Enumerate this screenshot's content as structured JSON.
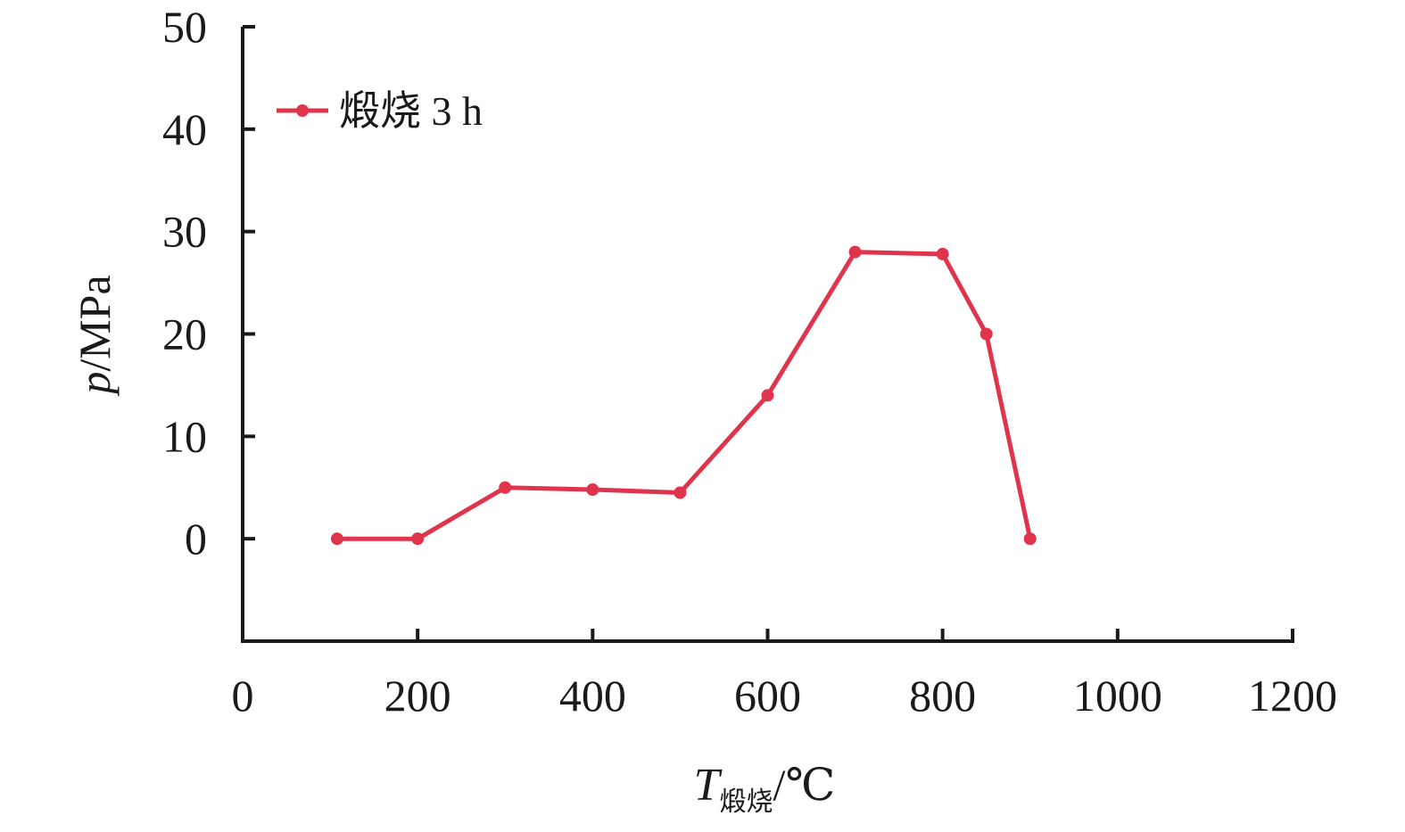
{
  "chart_data": {
    "type": "line",
    "xlabel": {
      "main": "T",
      "sub": "煅烧",
      "unit": "/℃"
    },
    "ylabel": {
      "main": "p",
      "unit": "/MPa"
    },
    "xlim": [
      0,
      1200
    ],
    "ylim": [
      -10,
      50
    ],
    "xticks": [
      0,
      200,
      400,
      600,
      800,
      1000,
      1200
    ],
    "xtick_labels": [
      "0",
      "200",
      "400",
      "600",
      "800",
      "1000",
      "1200"
    ],
    "yticks": [
      0,
      10,
      20,
      30,
      40,
      50
    ],
    "ytick_labels": [
      "0",
      "10",
      "20",
      "30",
      "40",
      "50"
    ],
    "grid": false,
    "legend_position": "top-left",
    "series": [
      {
        "name": "煅烧 3 h",
        "color": "#e0344c",
        "x": [
          108,
          200,
          300,
          400,
          500,
          600,
          700,
          800,
          850,
          900
        ],
        "y": [
          0,
          0,
          5,
          4.8,
          4.5,
          14,
          28,
          27.8,
          20,
          0
        ]
      }
    ]
  }
}
